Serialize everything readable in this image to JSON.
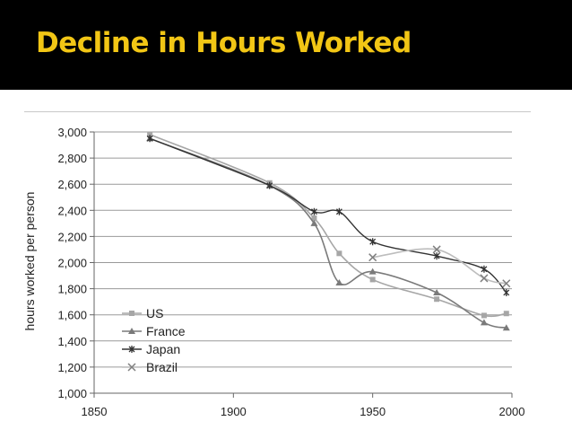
{
  "slide": {
    "title": "Decline in Hours Worked",
    "title_color": "#F2C615",
    "background": "#000000"
  },
  "chart_data": {
    "type": "line",
    "title": "",
    "xlabel": "",
    "ylabel": "hours worked per person",
    "xlim": [
      1850,
      2000
    ],
    "ylim": [
      1000,
      3000
    ],
    "xticks": [
      1850,
      1900,
      1950,
      2000
    ],
    "xtick_labels": [
      "1850",
      "1900",
      "1950",
      "2000"
    ],
    "yticks": [
      1000,
      1200,
      1400,
      1600,
      1800,
      2000,
      2200,
      2400,
      2600,
      2800,
      3000
    ],
    "ytick_labels": [
      "1,000",
      "1,200",
      "1,400",
      "1,600",
      "1,800",
      "2,000",
      "2,200",
      "2,400",
      "2,600",
      "2,800",
      "3,000"
    ],
    "grid": "horizontal",
    "legend_position": "bottom-left",
    "series": [
      {
        "name": "US",
        "marker": "square",
        "color": "#a6a6a6",
        "x": [
          1870,
          1913,
          1929,
          1938,
          1950,
          1973,
          1990,
          1998
        ],
        "y": [
          2980,
          2610,
          2340,
          2070,
          1870,
          1720,
          1595,
          1610
        ]
      },
      {
        "name": "France",
        "marker": "triangle",
        "color": "#7a7a7a",
        "x": [
          1870,
          1913,
          1929,
          1938,
          1950,
          1973,
          1990,
          1998
        ],
        "y": [
          2950,
          2590,
          2300,
          1845,
          1930,
          1770,
          1540,
          1500
        ]
      },
      {
        "name": "Japan",
        "marker": "star",
        "color": "#333333",
        "x": [
          1870,
          1913,
          1929,
          1938,
          1950,
          1973,
          1990,
          1998
        ],
        "y": [
          2950,
          2590,
          2390,
          2390,
          2160,
          2050,
          1950,
          1770
        ]
      },
      {
        "name": "Brazil",
        "marker": "x",
        "color": "#bdbdbd",
        "x": [
          1950,
          1973,
          1990,
          1998
        ],
        "y": [
          2040,
          2100,
          1880,
          1840
        ]
      }
    ]
  }
}
